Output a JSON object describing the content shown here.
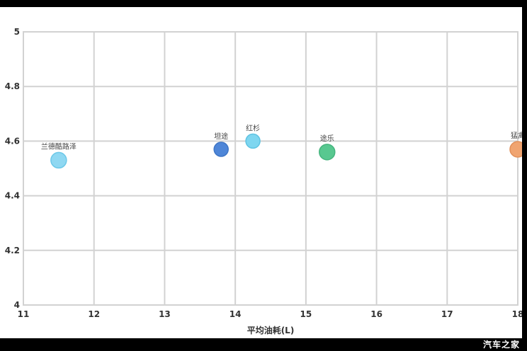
{
  "frame": {
    "watermark": "汽车之家"
  },
  "chart_data": {
    "type": "scatter",
    "title": "",
    "xlabel": "平均油耗(L)",
    "ylabel": "",
    "xlim": [
      11,
      18
    ],
    "ylim": [
      4,
      5
    ],
    "xticks": [
      11,
      12,
      13,
      14,
      15,
      16,
      17,
      18
    ],
    "yticks": [
      5,
      4.8,
      4.6,
      4.4,
      4.2,
      4
    ],
    "grid": true,
    "legend_position": "none",
    "points": [
      {
        "label": "兰德酷路泽",
        "x": 11.5,
        "y": 4.53,
        "r": 11,
        "fill": "#8FD8F2",
        "stroke": "#6CC8E8"
      },
      {
        "label": "坦途",
        "x": 13.8,
        "y": 4.57,
        "r": 10,
        "fill": "#4E86D8",
        "stroke": "#3F76C6"
      },
      {
        "label": "红杉",
        "x": 14.25,
        "y": 4.6,
        "r": 10,
        "fill": "#7ED6F0",
        "stroke": "#5FC3E2"
      },
      {
        "label": "途乐",
        "x": 15.3,
        "y": 4.56,
        "r": 11,
        "fill": "#58C890",
        "stroke": "#45B57E"
      },
      {
        "label": "猛禽",
        "x": 18.0,
        "y": 4.57,
        "r": 11,
        "fill": "#F0A470",
        "stroke": "#E2905A"
      }
    ]
  },
  "style": {
    "grid_color": "#d2d2d2",
    "tick_color": "#333333",
    "point_label_color": "#444444",
    "frame_color": "#000000",
    "background": "#ffffff"
  }
}
